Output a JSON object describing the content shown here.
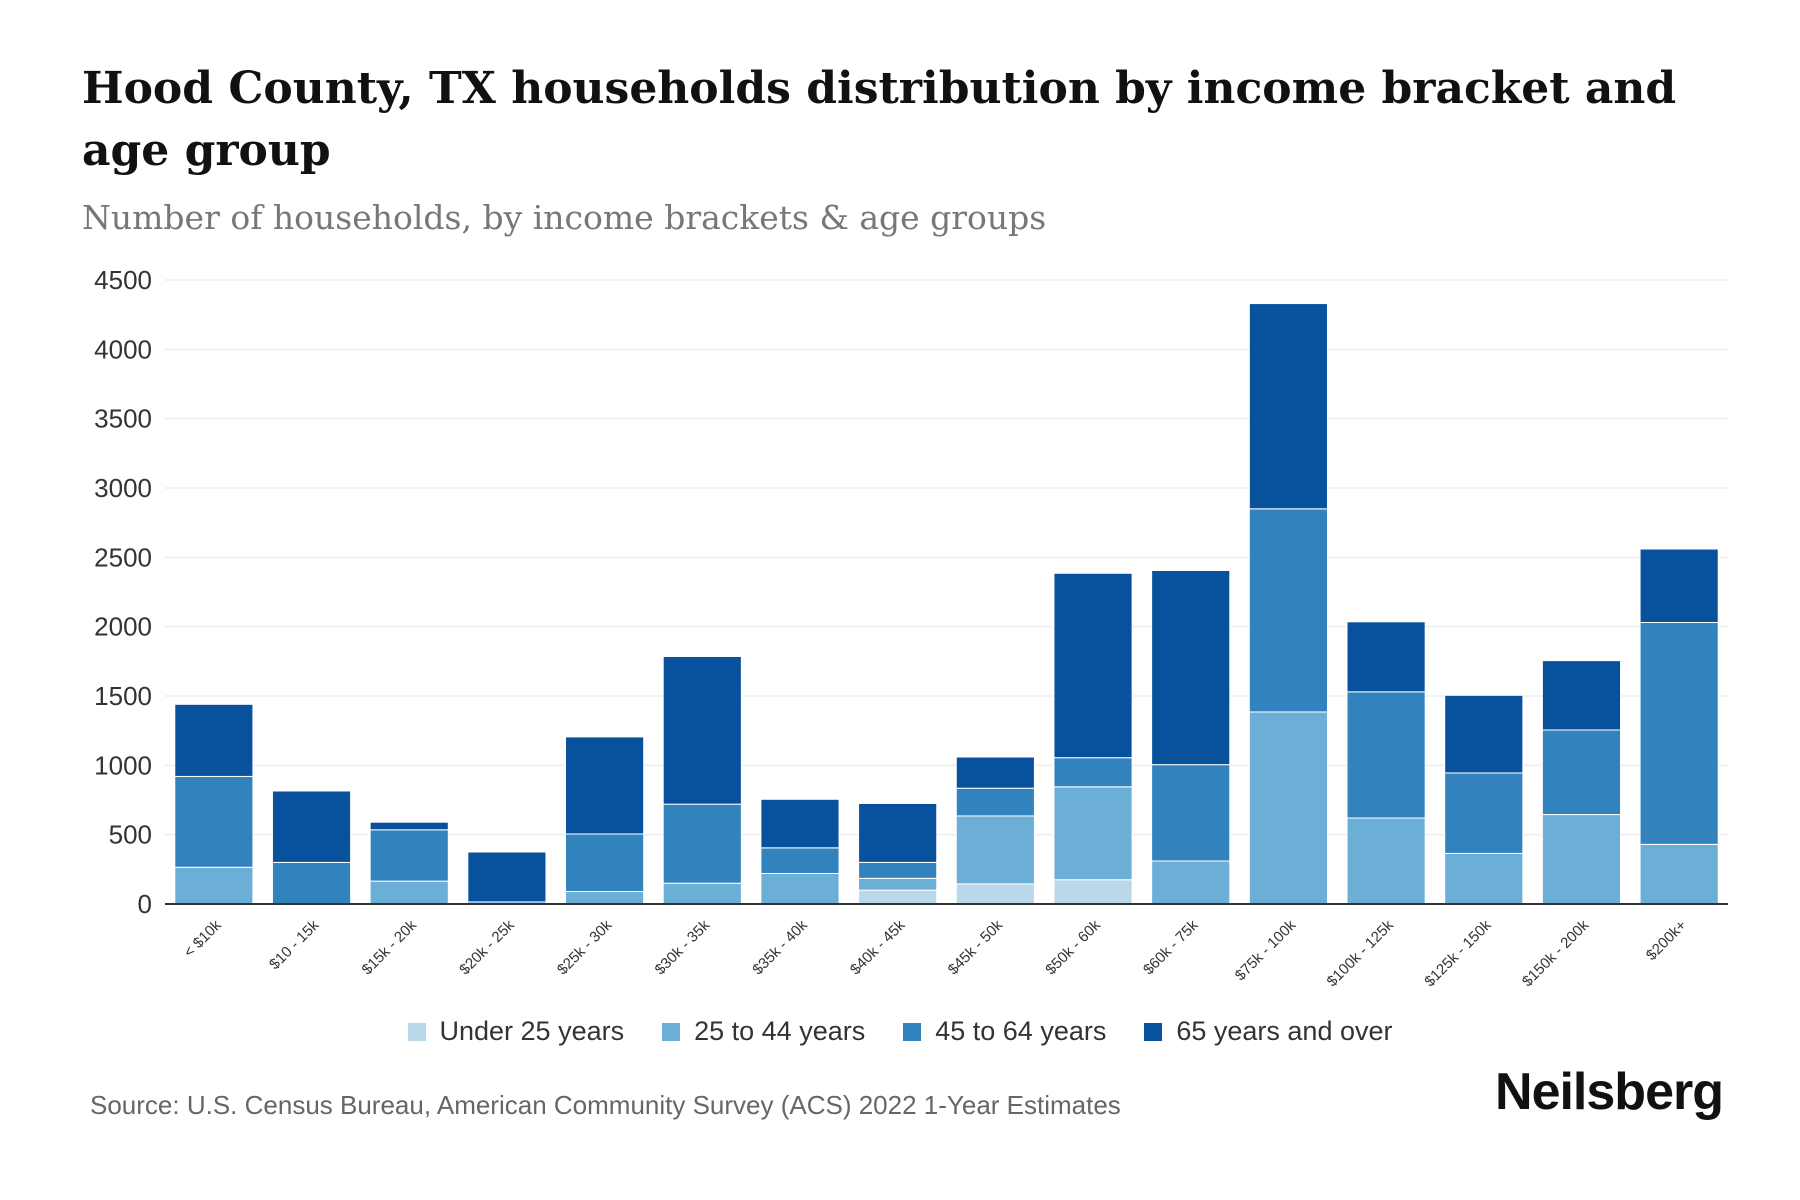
{
  "header": {
    "title": "Hood County, TX households distribution by income bracket and age group",
    "subtitle": "Number of households, by income brackets & age groups"
  },
  "footer": {
    "source": "Source: U.S. Census Bureau, American Community Survey (ACS) 2022 1-Year Estimates",
    "brand": "Neilsberg"
  },
  "colors": {
    "under_25": "#b9d9ea",
    "age_25_44": "#6baed6",
    "age_45_64": "#3182bd",
    "age_65_plus": "#08519c",
    "gridline": "#eeeeee",
    "axis": "#333333"
  },
  "chart_data": {
    "type": "bar",
    "stacked": true,
    "title": "Hood County, TX households distribution by income bracket and age group",
    "subtitle": "Number of households, by income brackets & age groups",
    "xlabel": "",
    "ylabel": "",
    "ylim": [
      0,
      4500
    ],
    "yticks": [
      "0",
      "500",
      "1000",
      "1500",
      "2000",
      "2500",
      "3000",
      "3500",
      "4000",
      "4500"
    ],
    "grid": true,
    "legend_position": "bottom",
    "categories": [
      "< $10k",
      "$10 - 15k",
      "$15k - 20k",
      "$20k - 25k",
      "$25k - 30k",
      "$30k - 35k",
      "$35k - 40k",
      "$40k - 45k",
      "$45k - 50k",
      "$50k - 60k",
      "$60k - 75k",
      "$75k - 100k",
      "$100k - 125k",
      "$125k - 150k",
      "$150k - 200k",
      "$200k+"
    ],
    "series": [
      {
        "name": "Under 25 years",
        "values": [
          0,
          0,
          0,
          0,
          0,
          0,
          0,
          100,
          145,
          175,
          0,
          0,
          0,
          0,
          0,
          0
        ]
      },
      {
        "name": "25 to 44 years",
        "values": [
          265,
          0,
          165,
          0,
          90,
          150,
          220,
          85,
          490,
          670,
          310,
          1385,
          620,
          365,
          645,
          430
        ]
      },
      {
        "name": "45 to 64 years",
        "values": [
          655,
          300,
          370,
          15,
          415,
          570,
          185,
          115,
          200,
          210,
          695,
          1465,
          910,
          580,
          610,
          1600
        ]
      },
      {
        "name": "65 years and over",
        "values": [
          520,
          515,
          55,
          360,
          700,
          1065,
          350,
          425,
          225,
          1330,
          1400,
          1480,
          505,
          560,
          500,
          530
        ]
      }
    ]
  }
}
